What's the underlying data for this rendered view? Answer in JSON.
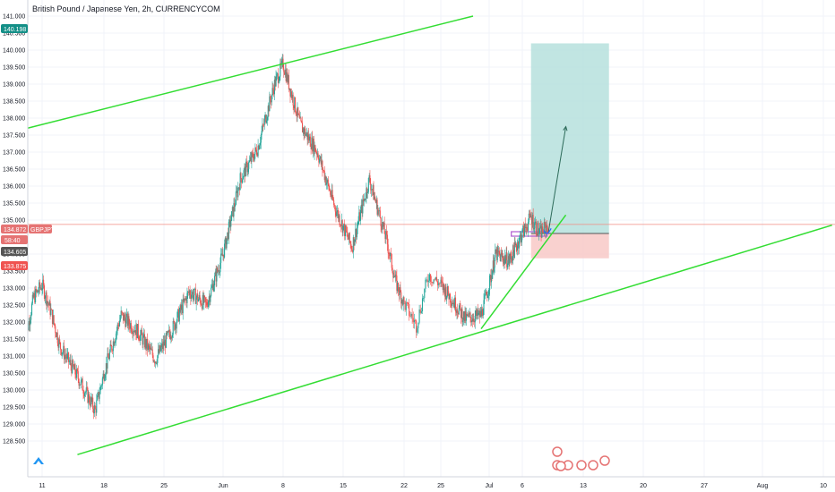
{
  "header": {
    "symbol_title": "British Pound / Japanese Yen, 2h, CURRENCYCOM"
  },
  "price_tags": {
    "current_price": "140.198",
    "last_price": "134.872",
    "symbol": "GBPJPY",
    "countdown": "58:40",
    "entry_price": "134.605",
    "stop_price": "133.875"
  },
  "colors": {
    "up_candle": "#26a69a",
    "down_candle": "#ef5350",
    "channel_line": "#33dd33",
    "last_price_line": "#f28b82",
    "target_zone": "#b2dfdb",
    "stop_zone": "#f8c9c7",
    "current_tag": "#138f87",
    "last_tag": "#e57373",
    "entry_tag": "#555555",
    "stop_tag": "#ef5350",
    "grid": "#f0f3fa",
    "axis_text": "#131722"
  },
  "chart_data": {
    "type": "candlestick",
    "title": "British Pound / Japanese Yen, 2h, CURRENCYCOM",
    "ylim": [
      128.2,
      141.0
    ],
    "y_ticks": [
      "128.500",
      "129.000",
      "129.500",
      "130.000",
      "130.500",
      "131.000",
      "131.500",
      "132.000",
      "132.500",
      "133.000",
      "133.500",
      "134.000",
      "135.000",
      "135.500",
      "136.000",
      "136.500",
      "137.000",
      "137.500",
      "138.000",
      "138.500",
      "139.000",
      "139.500",
      "140.000",
      "140.500",
      "141.000"
    ],
    "x_ticks": [
      "11",
      "18",
      "25",
      "Jun",
      "8",
      "15",
      "22",
      "25",
      "Jul",
      "6",
      "13",
      "20",
      "27",
      "Aug",
      "10"
    ],
    "grid": true,
    "price_path": [
      {
        "x": "May 9",
        "y": 131.3
      },
      {
        "x": "May 10",
        "y": 132.7
      },
      {
        "x": "May 11",
        "y": 133.1
      },
      {
        "x": "May 12",
        "y": 132.3
      },
      {
        "x": "May 13",
        "y": 131.3
      },
      {
        "x": "May 15",
        "y": 130.4
      },
      {
        "x": "May 17",
        "y": 129.4
      },
      {
        "x": "May 18",
        "y": 130.5
      },
      {
        "x": "May 20",
        "y": 132.2
      },
      {
        "x": "May 22",
        "y": 131.7
      },
      {
        "x": "May 24",
        "y": 130.9
      },
      {
        "x": "May 26",
        "y": 131.8
      },
      {
        "x": "May 28",
        "y": 132.9
      },
      {
        "x": "May 30",
        "y": 132.5
      },
      {
        "x": "Jun 1",
        "y": 134.0
      },
      {
        "x": "Jun 3",
        "y": 136.2
      },
      {
        "x": "Jun 5",
        "y": 137.1
      },
      {
        "x": "Jun 7",
        "y": 139.0
      },
      {
        "x": "Jun 8",
        "y": 139.6
      },
      {
        "x": "Jun 10",
        "y": 137.8
      },
      {
        "x": "Jun 12",
        "y": 137.0
      },
      {
        "x": "Jun 14",
        "y": 135.4
      },
      {
        "x": "Jun 16",
        "y": 134.2
      },
      {
        "x": "Jun 18",
        "y": 136.2
      },
      {
        "x": "Jun 20",
        "y": 134.4
      },
      {
        "x": "Jun 21",
        "y": 133.2
      },
      {
        "x": "Jun 23",
        "y": 131.9
      },
      {
        "x": "Jun 24",
        "y": 133.4
      },
      {
        "x": "Jun 26",
        "y": 132.8
      },
      {
        "x": "Jun 28",
        "y": 132.1
      },
      {
        "x": "Jun 30",
        "y": 132.2
      },
      {
        "x": "Jul 2",
        "y": 134.0
      },
      {
        "x": "Jul 4",
        "y": 133.8
      },
      {
        "x": "Jul 6",
        "y": 134.6
      },
      {
        "x": "Jul 7",
        "y": 135.1
      },
      {
        "x": "Jul 8",
        "y": 134.6
      },
      {
        "x": "Jul 9",
        "y": 134.872
      }
    ],
    "channel_upper": [
      {
        "x": "May 7",
        "y": 137.55
      },
      {
        "x": "Jun 29",
        "y": 141.0
      }
    ],
    "channel_lower": [
      {
        "x": "May 15",
        "y": 128.1
      },
      {
        "x": "Aug 11",
        "y": 134.85
      }
    ],
    "support_line": [
      {
        "x": "Jun 30",
        "y": 131.8
      },
      {
        "x": "Jul 11",
        "y": 135.15
      }
    ],
    "last_price": 134.872,
    "long_position": {
      "entry": 134.605,
      "target": 140.198,
      "stop": 133.875,
      "from": "Jul 7",
      "to": "Jul 16"
    },
    "projection_arrow": [
      {
        "x": "Jul 9",
        "y": 134.65
      },
      {
        "x": "Jul 11",
        "y": 137.75
      }
    ]
  }
}
